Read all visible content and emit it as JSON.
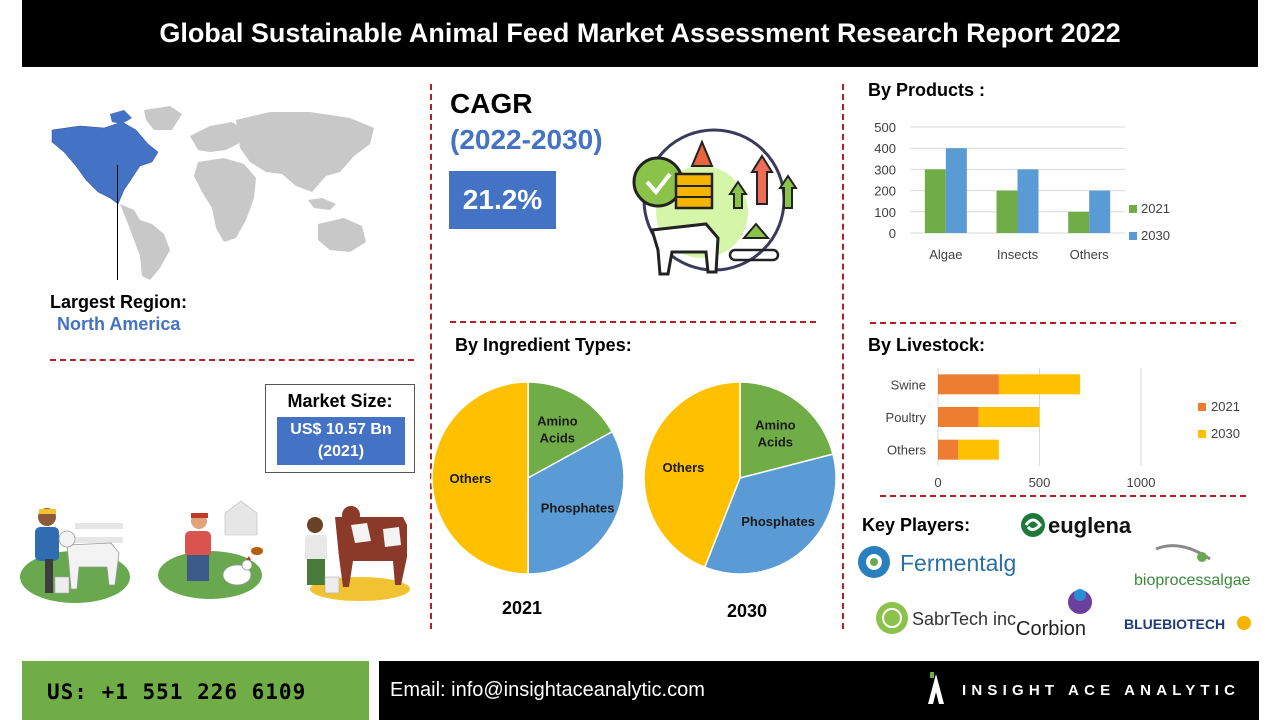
{
  "header": {
    "title": "Global Sustainable Animal Feed Market Assessment Research Report 2022"
  },
  "region": {
    "label": "Largest Region:",
    "value": "North America"
  },
  "market_size": {
    "label": "Market Size:",
    "value_line1": "US$ 10.57 Bn",
    "value_line2": "(2021)"
  },
  "cagr": {
    "label": "CAGR",
    "period": "(2022-2030)",
    "value": "21.2%"
  },
  "sections": {
    "products": "By Products :",
    "ingredients": "By Ingredient Types:",
    "livestock": "By Livestock:",
    "key_players": "Key Players:"
  },
  "colors": {
    "blue": "#4472c4",
    "green": "#70ad47",
    "orange": "#ed7d31",
    "yellow": "#ffc000",
    "red_dash": "#b21f24"
  },
  "chart_data": [
    {
      "id": "products",
      "type": "bar",
      "title": "By Products :",
      "categories": [
        "Algae",
        "Insects",
        "Others"
      ],
      "series": [
        {
          "name": "2021",
          "values": [
            300,
            200,
            100
          ],
          "color": "#70ad47"
        },
        {
          "name": "2030",
          "values": [
            400,
            300,
            200
          ],
          "color": "#5b9bd5"
        }
      ],
      "ylim": [
        0,
        500
      ],
      "yticks": [
        0,
        100,
        200,
        300,
        400,
        500
      ],
      "grid": true,
      "legend": "right"
    },
    {
      "id": "livestock",
      "type": "bar",
      "orientation": "horizontal",
      "stacked": true,
      "title": "By Livestock:",
      "categories": [
        "Swine",
        "Poultry",
        "Others"
      ],
      "series": [
        {
          "name": "2021",
          "values": [
            300,
            200,
            100
          ],
          "color": "#ed7d31"
        },
        {
          "name": "2030",
          "values": [
            400,
            300,
            200
          ],
          "color": "#ffc000"
        }
      ],
      "xlim": [
        0,
        1000
      ],
      "xticks": [
        0,
        500,
        1000
      ],
      "grid": true,
      "legend": "right"
    },
    {
      "id": "ingredients-2021",
      "type": "pie",
      "title": "2021",
      "labels": [
        "Amino Acids",
        "Phosphates",
        "Others"
      ],
      "values": [
        17,
        33,
        50
      ],
      "colors": [
        "#70ad47",
        "#5b9bd5",
        "#ffc000"
      ]
    },
    {
      "id": "ingredients-2030",
      "type": "pie",
      "title": "2030",
      "labels": [
        "Amino Acids",
        "Phosphates",
        "Others"
      ],
      "values": [
        21,
        35,
        44
      ],
      "colors": [
        "#70ad47",
        "#5b9bd5",
        "#ffc000"
      ]
    }
  ],
  "key_players": [
    "euglena",
    "Fermentalg",
    "bioprocessalgae",
    "SabrTech inc",
    "Corbion",
    "BLUEBIOTECH"
  ],
  "footer": {
    "phone": "US: +1 551 226 6109",
    "email": "Email: info@insightaceanalytic.com",
    "brand": "INSIGHT ACE ANALYTIC"
  }
}
